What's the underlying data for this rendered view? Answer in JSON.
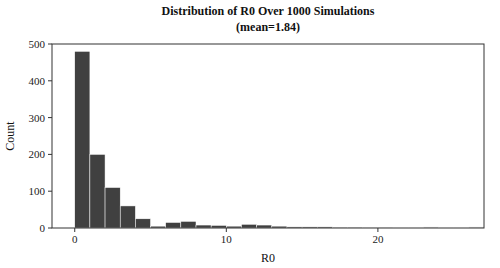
{
  "chart_data": {
    "type": "histogram",
    "title": "Distribution of R0 Over 1000 Simulations",
    "subtitle": "(mean=1.84)",
    "x_label": "R0",
    "y_label": "Count",
    "bins": [
      0,
      1,
      2,
      3,
      4,
      5,
      6,
      7,
      8,
      9,
      10,
      11,
      12,
      13,
      14,
      15,
      16,
      17,
      18,
      19,
      20,
      21,
      22,
      23,
      24,
      25,
      26,
      27
    ],
    "values": [
      480,
      200,
      110,
      60,
      25,
      5,
      15,
      18,
      8,
      7,
      5,
      10,
      8,
      5,
      3,
      3,
      3,
      2,
      2,
      1,
      1,
      1,
      1,
      3,
      1,
      1,
      3
    ],
    "colors": [
      "#404040",
      "#404040",
      "#404040",
      "#404040",
      "#404040",
      "#404040",
      "#404040",
      "#404040",
      "#404040",
      "#404040",
      "#404040",
      "#404040",
      "#404040",
      "#404040",
      "#404040",
      "#404040",
      "#404040",
      "#404040",
      "#404040",
      "#404040",
      "#404040",
      "#c0c0c0",
      "#c0c0c0",
      "#c0c0c0",
      "#c0c0c0",
      "#c0c0c0",
      "#c0c0c0"
    ],
    "xlim": [
      -1.5,
      27
    ],
    "ylim": [
      0,
      500
    ],
    "xticks": [
      0,
      10,
      20
    ],
    "yticks": [
      0,
      100,
      200,
      300,
      400,
      500
    ],
    "grid": false
  }
}
